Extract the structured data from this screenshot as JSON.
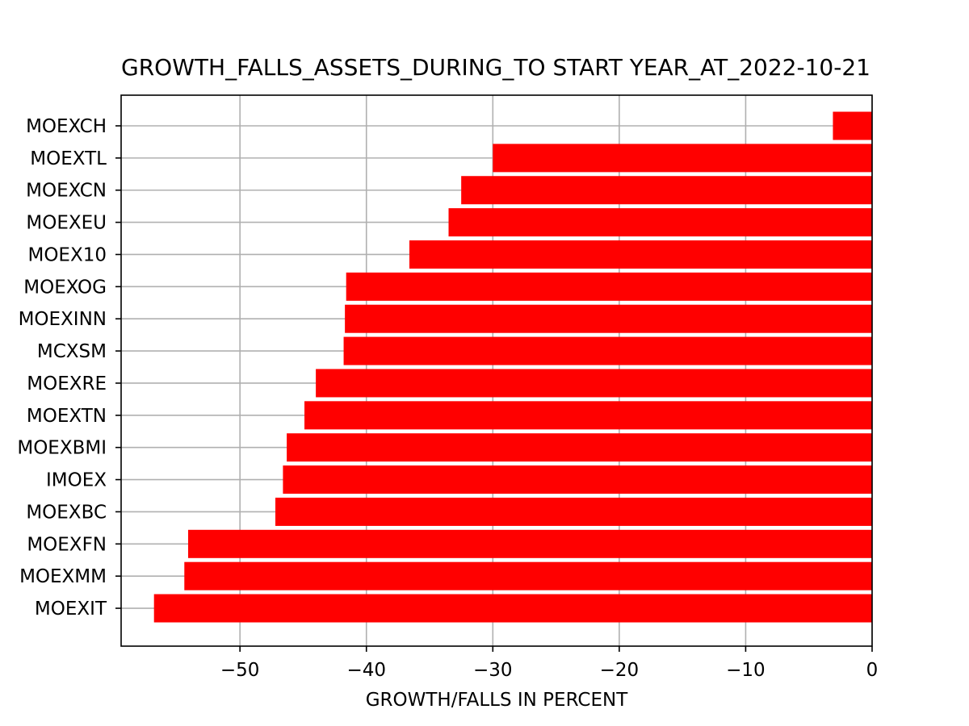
{
  "chart_data": {
    "type": "bar",
    "orientation": "horizontal",
    "title": "GROWTH_FALLS_ASSETS_DURING_TO START YEAR_AT_2022-10-21",
    "xlabel": "GROWTH/FALLS IN PERCENT",
    "ylabel": "",
    "xlim": [
      -59.4,
      0
    ],
    "xticks": [
      -50,
      -40,
      -30,
      -20,
      -10,
      0
    ],
    "xtick_labels": [
      "−50",
      "−40",
      "−30",
      "−20",
      "−10",
      "0"
    ],
    "grid": true,
    "bar_color": "#ff0000",
    "grid_color": "#b0b0b0",
    "categories": [
      "MOEXCH",
      "MOEXTL",
      "MOEXCN",
      "MOEXEU",
      "MOEX10",
      "MOEXOG",
      "MOEXINN",
      "MCXSM",
      "MOEXRE",
      "MOEXTN",
      "MOEXBMI",
      "IMOEX",
      "MOEXBC",
      "MOEXFN",
      "MOEXMM",
      "MOEXIT"
    ],
    "values": [
      -3.1,
      -30.0,
      -32.5,
      -33.5,
      -36.6,
      -41.6,
      -41.7,
      -41.8,
      -44.0,
      -44.9,
      -46.3,
      -46.6,
      -47.2,
      -54.1,
      -54.4,
      -56.8
    ]
  }
}
